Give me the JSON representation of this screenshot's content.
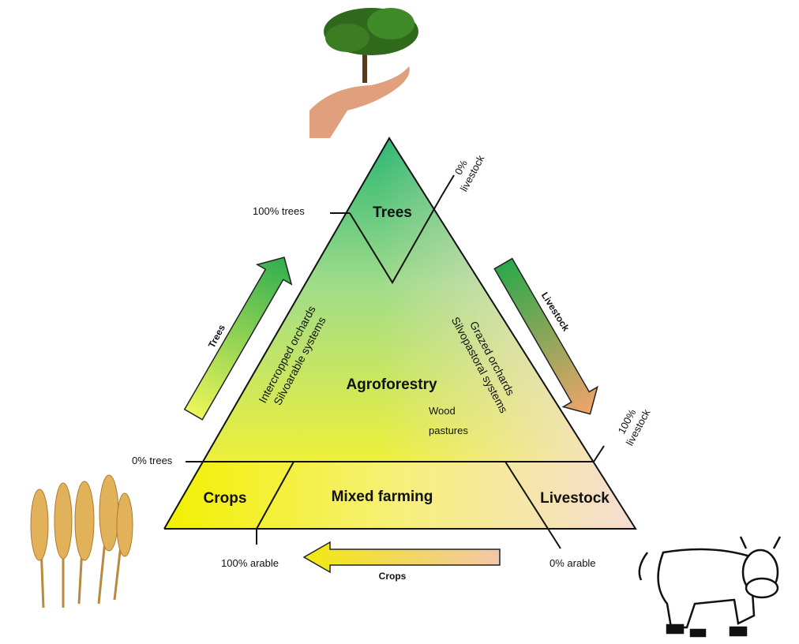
{
  "zones": {
    "trees": "Trees",
    "agroforestry": "Agroforestry",
    "crops": "Crops",
    "mixed_farming": "Mixed farming",
    "livestock": "Livestock"
  },
  "systems": {
    "left": [
      "Intercropped orchards",
      "Silvoarable systems"
    ],
    "right": [
      "Grazed orchards",
      "Silvopastoral systems"
    ],
    "wood_pastures": [
      "Wood",
      "pastures"
    ]
  },
  "scale_labels": {
    "trees_100": "100% trees",
    "trees_0": "0% trees",
    "livestock_0": [
      "0%",
      "livestock"
    ],
    "livestock_100": [
      "100%",
      "livestock"
    ],
    "arable_100": "100% arable",
    "arable_0": "0% arable"
  },
  "arrows": {
    "trees": "Trees",
    "livestock": "Livestock",
    "crops": "Crops"
  }
}
